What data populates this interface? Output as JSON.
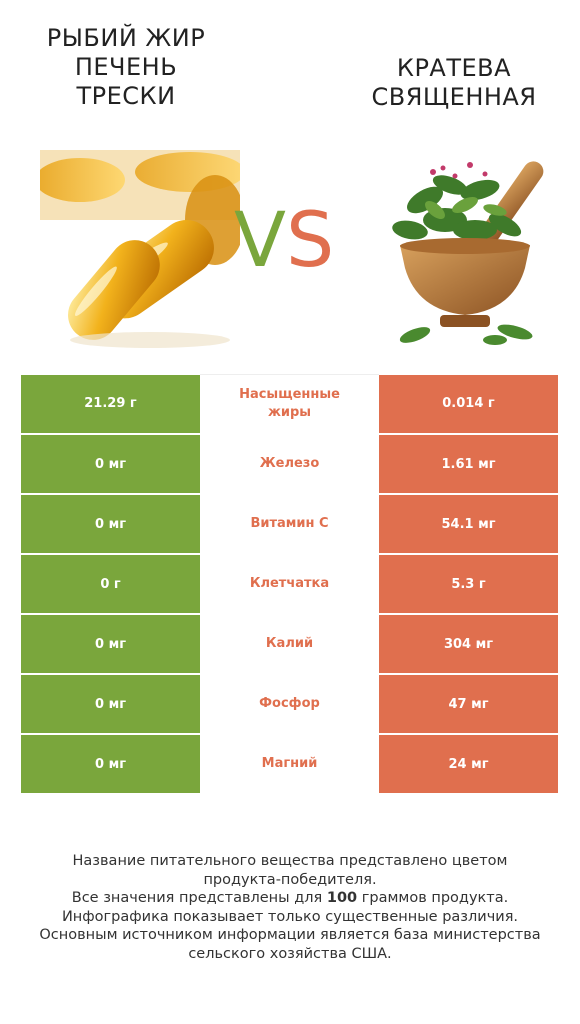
{
  "left_product": {
    "name_line1": "рыбий жир",
    "name_line2": "печень",
    "name_line3": "трески"
  },
  "right_product": {
    "name_line1": "Кратева",
    "name_line2": "священная"
  },
  "vs": {
    "v": "V",
    "s": "S"
  },
  "rows": [
    {
      "nutrient_line1": "Насыщенные",
      "nutrient_line2": "жиры",
      "left": "21.29 г",
      "right": "0.014 г"
    },
    {
      "nutrient_line1": "Железо",
      "nutrient_line2": "",
      "left": "0 мг",
      "right": "1.61 мг"
    },
    {
      "nutrient_line1": "Витамин C",
      "nutrient_line2": "",
      "left": "0 мг",
      "right": "54.1 мг"
    },
    {
      "nutrient_line1": "Клетчатка",
      "nutrient_line2": "",
      "left": "0 г",
      "right": "5.3 г"
    },
    {
      "nutrient_line1": "Калий",
      "nutrient_line2": "",
      "left": "0 мг",
      "right": "304 мг"
    },
    {
      "nutrient_line1": "Фосфор",
      "nutrient_line2": "",
      "left": "0 мг",
      "right": "47 мг"
    },
    {
      "nutrient_line1": "Магний",
      "nutrient_line2": "",
      "left": "0 мг",
      "right": "24 мг"
    }
  ],
  "colors": {
    "left_winner": "#7aa63c",
    "right_winner": "#e06f4e"
  },
  "footer": {
    "line1": "Название питательного вещества представлено цветом",
    "line2": "продукта-победителя.",
    "line3_pre": "Все значения представлены для ",
    "line3_bold": "100",
    "line3_post": " граммов продукта.",
    "line4": "Инфографика показывает только существенные различия.",
    "line5": "Основным источником информации является база министерства",
    "line6": "сельского хозяйства США."
  }
}
